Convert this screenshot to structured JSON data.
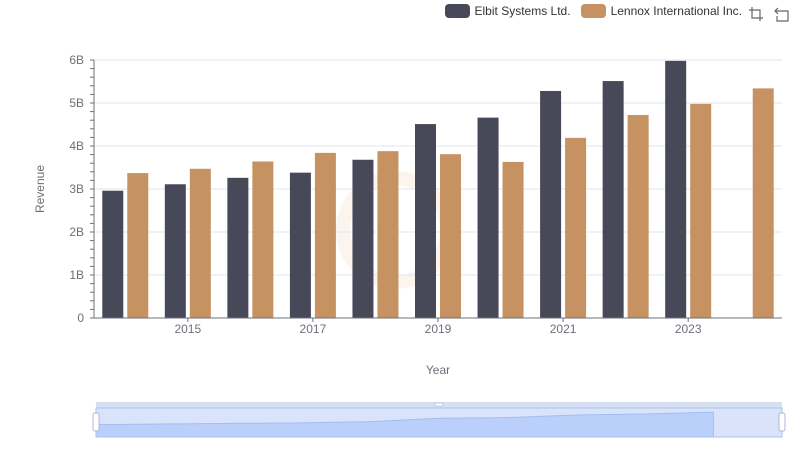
{
  "legend": {
    "series": [
      {
        "name": "Elbit Systems Ltd.",
        "color": "#474858"
      },
      {
        "name": "Lennox International Inc.",
        "color": "#c69261"
      }
    ]
  },
  "toolbox": {
    "icons": [
      "zoom-icon",
      "restore-icon"
    ]
  },
  "chart_data": {
    "type": "bar",
    "xlabel": "Year",
    "ylabel": "Revenue",
    "ylim": [
      0,
      6000000000
    ],
    "yticks": [
      "0",
      "1B",
      "2B",
      "3B",
      "4B",
      "5B",
      "6B"
    ],
    "xticks": [
      "2015",
      "2017",
      "2019",
      "2021",
      "2023"
    ],
    "categories": [
      "2014",
      "2015",
      "2016",
      "2017",
      "2018",
      "2019",
      "2020",
      "2021",
      "2022",
      "2023",
      "2024"
    ],
    "series": [
      {
        "name": "Elbit Systems Ltd.",
        "color": "#474858",
        "values": [
          2960000000,
          3110000000,
          3260000000,
          3380000000,
          3680000000,
          4510000000,
          4660000000,
          5280000000,
          5510000000,
          5980000000,
          null
        ]
      },
      {
        "name": "Lennox International Inc.",
        "color": "#c69261",
        "values": [
          3370000000,
          3470000000,
          3640000000,
          3840000000,
          3880000000,
          3810000000,
          3630000000,
          4190000000,
          4720000000,
          4980000000,
          5340000000
        ]
      }
    ],
    "grid": true,
    "legend_position": "top-right",
    "datazoom": {
      "range_percent": [
        0,
        100
      ]
    }
  }
}
